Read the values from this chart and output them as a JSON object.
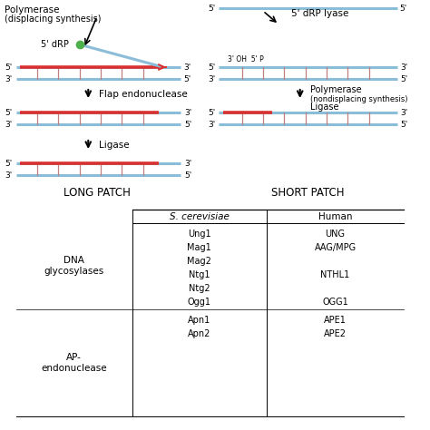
{
  "bg_color": "#ffffff",
  "dna_color": "#8bbdd9",
  "red_color": "#d93030",
  "green_color": "#4db04d",
  "lw_dna": 2.2,
  "lw_tick": 0.9,
  "tick_color": "#c08080",
  "long_patch_label": "LONG PATCH",
  "short_patch_label": "SHORT PATCH",
  "table": {
    "col_headers": [
      "S. cerevisiae",
      "Human"
    ],
    "row1_label_lines": [
      "DNA",
      "glycosylases"
    ],
    "row1_sc": [
      "Ung1",
      "Mag1",
      "Mag2",
      "Ntg1",
      "Ntg2",
      "Ogg1"
    ],
    "row1_hu": [
      "UNG",
      "AAG/MPG",
      "",
      "NTHL1",
      "",
      "OGG1"
    ],
    "row2_label_lines": [
      "AP-",
      "endonuclease"
    ],
    "row2_sc": [
      "Apn1",
      "Apn2"
    ],
    "row2_hu": [
      "APE1",
      "APE2"
    ]
  }
}
